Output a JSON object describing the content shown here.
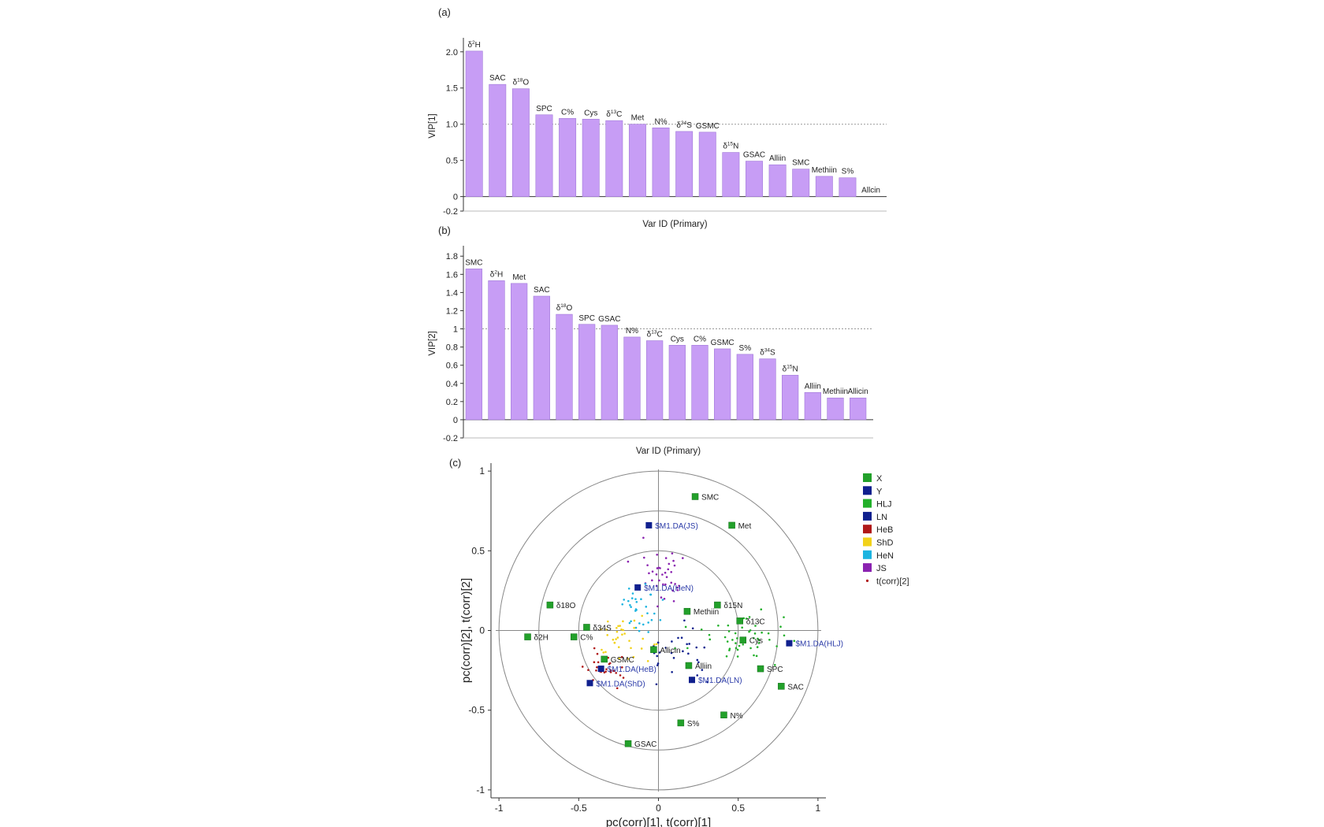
{
  "colors": {
    "bar": "#c79df5",
    "bar_edge": "#a078d8",
    "axis": "#333333",
    "circle": "#888888",
    "X": "#22a02a",
    "Y": "#10208e",
    "HLJ": "#22b02a",
    "LN": "#10208e",
    "HeB": "#b01818",
    "ShD": "#f2d21a",
    "HeN": "#1cb4e0",
    "JS": "#8a22b0"
  },
  "chart_data": [
    {
      "panel_label": "(a)",
      "type": "bar",
      "xlabel": "Var ID (Primary)",
      "ylabel": "VIP[1]",
      "ylim": [
        -0.2,
        2.15
      ],
      "yticks": [
        -0.2,
        0,
        0.5,
        1.0,
        1.5,
        2.0
      ],
      "ytick_labels": [
        "-0.2",
        "0",
        "0.5",
        "1.0",
        "1.5",
        "2.0"
      ],
      "reference_line": 1.0,
      "categories": [
        {
          "base": "δ",
          "sup": "2",
          "rest": "H"
        },
        {
          "base": "SAC",
          "sup": "",
          "rest": ""
        },
        {
          "base": "δ",
          "sup": "18",
          "rest": "O"
        },
        {
          "base": "SPC",
          "sup": "",
          "rest": ""
        },
        {
          "base": "C%",
          "sup": "",
          "rest": ""
        },
        {
          "base": "Cys",
          "sup": "",
          "rest": ""
        },
        {
          "base": "δ",
          "sup": "13",
          "rest": "C"
        },
        {
          "base": "Met",
          "sup": "",
          "rest": ""
        },
        {
          "base": "N%",
          "sup": "",
          "rest": ""
        },
        {
          "base": "δ",
          "sup": "34",
          "rest": "S"
        },
        {
          "base": "GSMC",
          "sup": "",
          "rest": ""
        },
        {
          "base": "δ",
          "sup": "15",
          "rest": "N"
        },
        {
          "base": "GSAC",
          "sup": "",
          "rest": ""
        },
        {
          "base": "Alliin",
          "sup": "",
          "rest": ""
        },
        {
          "base": "SMC",
          "sup": "",
          "rest": ""
        },
        {
          "base": "Methiin",
          "sup": "",
          "rest": ""
        },
        {
          "base": "S%",
          "sup": "",
          "rest": ""
        },
        {
          "base": "Allcin",
          "sup": "",
          "rest": ""
        }
      ],
      "values": [
        2.01,
        1.55,
        1.49,
        1.13,
        1.08,
        1.07,
        1.05,
        1.0,
        0.95,
        0.9,
        0.89,
        0.61,
        0.49,
        0.44,
        0.38,
        0.28,
        0.26,
        0.0
      ]
    },
    {
      "panel_label": "(b)",
      "type": "bar",
      "xlabel": "Var ID (Primary)",
      "ylabel": "VIP[2]",
      "ylim": [
        -0.2,
        1.88
      ],
      "yticks": [
        -0.2,
        0,
        0.2,
        0.4,
        0.6,
        0.8,
        1,
        1.2,
        1.4,
        1.6,
        1.8
      ],
      "ytick_labels": [
        "-0.2",
        "0",
        "0.2",
        "0.4",
        "0.6",
        "0.8",
        "1",
        "1.2",
        "1.4",
        "1.6",
        "1.8"
      ],
      "reference_line": 1.0,
      "categories": [
        {
          "base": "SMC",
          "sup": "",
          "rest": ""
        },
        {
          "base": "δ",
          "sup": "2",
          "rest": "H"
        },
        {
          "base": "Met",
          "sup": "",
          "rest": ""
        },
        {
          "base": "SAC",
          "sup": "",
          "rest": ""
        },
        {
          "base": "δ",
          "sup": "18",
          "rest": "O"
        },
        {
          "base": "SPC",
          "sup": "",
          "rest": ""
        },
        {
          "base": "GSAC",
          "sup": "",
          "rest": ""
        },
        {
          "base": "N%",
          "sup": "",
          "rest": ""
        },
        {
          "base": "δ",
          "sup": "13",
          "rest": "C"
        },
        {
          "base": "Cys",
          "sup": "",
          "rest": ""
        },
        {
          "base": "C%",
          "sup": "",
          "rest": ""
        },
        {
          "base": "GSMC",
          "sup": "",
          "rest": ""
        },
        {
          "base": "S%",
          "sup": "",
          "rest": ""
        },
        {
          "base": "δ",
          "sup": "34",
          "rest": "S"
        },
        {
          "base": "δ",
          "sup": "15",
          "rest": "N"
        },
        {
          "base": "Alliin",
          "sup": "",
          "rest": ""
        },
        {
          "base": "Methiin",
          "sup": "",
          "rest": ""
        },
        {
          "base": "Allicin",
          "sup": "",
          "rest": ""
        }
      ],
      "values": [
        1.66,
        1.53,
        1.5,
        1.36,
        1.16,
        1.05,
        1.04,
        0.91,
        0.87,
        0.82,
        0.82,
        0.78,
        0.72,
        0.67,
        0.49,
        0.3,
        0.24,
        0.24
      ]
    },
    {
      "panel_label": "(c)",
      "type": "scatter",
      "xlabel": "pc(corr)[1], t(corr)[1]",
      "ylabel": "pc(corr)[2], t(corr)[2]",
      "xlim": [
        -1.05,
        1.05
      ],
      "ylim": [
        -1.05,
        1.05
      ],
      "xticks": [
        -1,
        -0.5,
        0,
        0.5,
        1
      ],
      "xtick_labels": [
        "-1",
        "-0.5",
        "0",
        "0.5",
        "1"
      ],
      "yticks": [
        -1,
        -0.5,
        0,
        0.5,
        1
      ],
      "ytick_labels": [
        "-1",
        "-0.5",
        "0",
        "0.5",
        "1"
      ],
      "circles": [
        1.0,
        0.75,
        0.5
      ],
      "legend": [
        {
          "label": "X",
          "color": "#22a02a",
          "marker": "square"
        },
        {
          "label": "Y",
          "color": "#10208e",
          "marker": "square"
        },
        {
          "label": "HLJ",
          "color": "#22b02a",
          "marker": "square"
        },
        {
          "label": "LN",
          "color": "#10208e",
          "marker": "square"
        },
        {
          "label": "HeB",
          "color": "#b01818",
          "marker": "square"
        },
        {
          "label": "ShD",
          "color": "#f2d21a",
          "marker": "square"
        },
        {
          "label": "HeN",
          "color": "#1cb4e0",
          "marker": "square"
        },
        {
          "label": "JS",
          "color": "#8a22b0",
          "marker": "square"
        },
        {
          "label": "t(corr)[2]",
          "color": "#b01818",
          "marker": "dot"
        }
      ],
      "x_variables": [
        {
          "label": "SMC",
          "x": 0.23,
          "y": 0.84
        },
        {
          "label": "Met",
          "x": 0.46,
          "y": 0.66
        },
        {
          "label": "δ18O",
          "x": -0.68,
          "y": 0.16
        },
        {
          "label": "δ15N",
          "x": 0.37,
          "y": 0.16
        },
        {
          "label": "Methiin",
          "x": 0.18,
          "y": 0.12
        },
        {
          "label": "δ13C",
          "x": 0.51,
          "y": 0.06
        },
        {
          "label": "δ34S",
          "x": -0.45,
          "y": 0.02
        },
        {
          "label": "δ2H",
          "x": -0.82,
          "y": -0.04
        },
        {
          "label": "C%",
          "x": -0.53,
          "y": -0.04
        },
        {
          "label": "Cys",
          "x": 0.53,
          "y": -0.06
        },
        {
          "label": "Allicin",
          "x": -0.03,
          "y": -0.12
        },
        {
          "label": "GSMC",
          "x": -0.34,
          "y": -0.18
        },
        {
          "label": "Alliin",
          "x": 0.19,
          "y": -0.22
        },
        {
          "label": "SPC",
          "x": 0.64,
          "y": -0.24
        },
        {
          "label": "SAC",
          "x": 0.77,
          "y": -0.35
        },
        {
          "label": "N%",
          "x": 0.41,
          "y": -0.53
        },
        {
          "label": "S%",
          "x": 0.14,
          "y": -0.58
        },
        {
          "label": "GSAC",
          "x": -0.19,
          "y": -0.71
        }
      ],
      "y_variables": [
        {
          "label": "$M1.DA(JS)",
          "x": -0.06,
          "y": 0.66
        },
        {
          "label": "$M1.DA(HeN)",
          "x": -0.13,
          "y": 0.27
        },
        {
          "label": "$M1.DA(HLJ)",
          "x": 0.82,
          "y": -0.08
        },
        {
          "label": "$M1.DA(HeB)",
          "x": -0.36,
          "y": -0.24
        },
        {
          "label": "$M1.DA(ShD)",
          "x": -0.43,
          "y": -0.33
        },
        {
          "label": "$M1.DA(LN)",
          "x": 0.21,
          "y": -0.31
        }
      ],
      "score_groups": [
        {
          "group": "JS",
          "n": 38,
          "cx": 0.02,
          "cy": 0.33,
          "sx": 0.08,
          "sy": 0.11
        },
        {
          "group": "HeN",
          "n": 32,
          "cx": -0.11,
          "cy": 0.14,
          "sx": 0.06,
          "sy": 0.07
        },
        {
          "group": "HLJ",
          "n": 50,
          "cx": 0.52,
          "cy": -0.04,
          "sx": 0.16,
          "sy": 0.07
        },
        {
          "group": "LN",
          "n": 28,
          "cx": 0.12,
          "cy": -0.13,
          "sx": 0.12,
          "sy": 0.09
        },
        {
          "group": "ShD",
          "n": 36,
          "cx": -0.2,
          "cy": -0.08,
          "sx": 0.09,
          "sy": 0.07
        },
        {
          "group": "HeB",
          "n": 26,
          "cx": -0.3,
          "cy": -0.24,
          "sx": 0.07,
          "sy": 0.05
        }
      ]
    }
  ]
}
